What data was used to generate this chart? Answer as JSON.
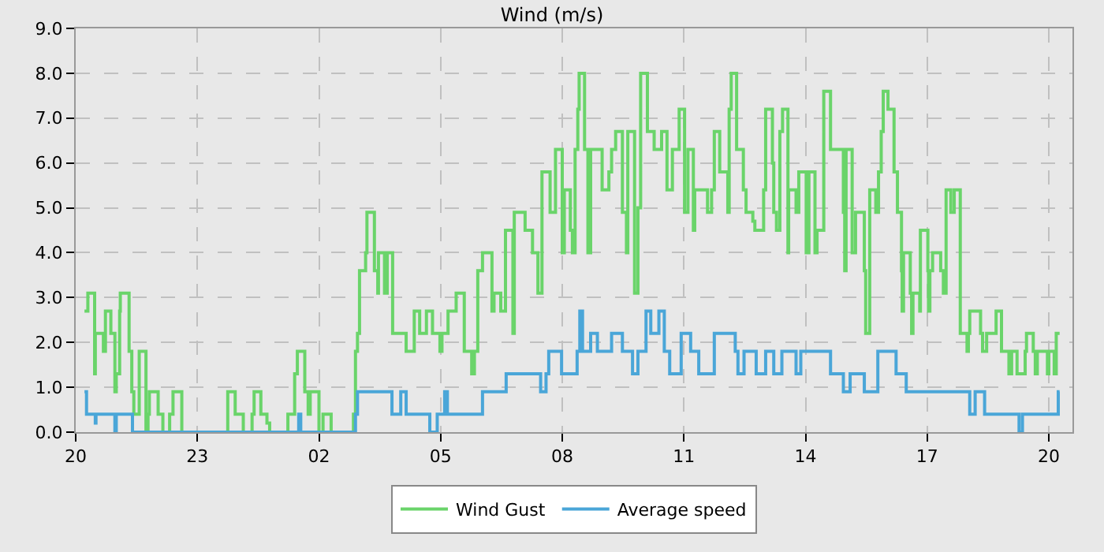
{
  "chart_data": {
    "type": "step",
    "title": "Wind (m/s)",
    "xlim": [
      "--01-01T20:00",
      "--01-02T20:35"
    ],
    "xticks": [
      {
        "value": "--01-01T20:00",
        "label": "20"
      },
      {
        "value": "--01-01T23:00",
        "label": "23"
      },
      {
        "value": "--01-02T02:00",
        "label": "02"
      },
      {
        "value": "--01-02T05:00",
        "label": "05"
      },
      {
        "value": "--01-02T08:00",
        "label": "08"
      },
      {
        "value": "--01-02T11:00",
        "label": "11"
      },
      {
        "value": "--01-02T14:00",
        "label": "14"
      },
      {
        "value": "--01-02T17:00",
        "label": "17"
      },
      {
        "value": "--01-02T20:00",
        "label": "20"
      }
    ],
    "ylim": [
      0,
      9
    ],
    "yticks": [
      {
        "value": 0,
        "label": "0.0"
      },
      {
        "value": 1,
        "label": "1.0"
      },
      {
        "value": 2,
        "label": "2.0"
      },
      {
        "value": 3,
        "label": "3.0"
      },
      {
        "value": 4,
        "label": "4.0"
      },
      {
        "value": 5,
        "label": "5.0"
      },
      {
        "value": 6,
        "label": "6.0"
      },
      {
        "value": 7,
        "label": "7.0"
      },
      {
        "value": 8,
        "label": "8.0"
      },
      {
        "value": 9,
        "label": "9.0"
      }
    ],
    "grid": true,
    "legend": "bottom",
    "marker": "none",
    "line_style": "solid",
    "series": [
      {
        "name": "Wind Gust",
        "color": "#6ad46a",
        "x": [
          "--01-01T20:13",
          "--01-01T20:18",
          "--01-01T20:28",
          "--01-01T20:29",
          "--01-01T20:41",
          "--01-01T20:44",
          "--01-01T20:52",
          "--01-01T20:58",
          "--01-01T21:00",
          "--01-01T21:05",
          "--01-01T21:06",
          "--01-01T21:19",
          "--01-01T21:23",
          "--01-01T21:26",
          "--01-01T21:34",
          "--01-01T21:44",
          "--01-01T21:47",
          "--01-01T21:49",
          "--01-01T22:02",
          "--01-01T22:09",
          "--01-01T22:19",
          "--01-01T22:24",
          "--01-01T22:37",
          "--01-01T23:45",
          "--01-01T23:56",
          "--01-02T00:08",
          "--01-02T00:21",
          "--01-02T00:24",
          "--01-02T00:34",
          "--01-02T00:43",
          "--01-02T00:47",
          "--01-02T01:14",
          "--01-02T01:24",
          "--01-02T01:28",
          "--01-02T01:39",
          "--01-02T01:44",
          "--01-02T01:47",
          "--01-02T02:00",
          "--01-02T02:06",
          "--01-02T02:18",
          "--01-02T02:51",
          "--01-02T02:54",
          "--01-02T02:57",
          "--01-02T03:00",
          "--01-02T03:09",
          "--01-02T03:11",
          "--01-02T03:22",
          "--01-02T03:27",
          "--01-02T03:28",
          "--01-02T03:37",
          "--01-02T03:41",
          "--01-02T03:49",
          "--01-02T03:54",
          "--01-02T04:09",
          "--01-02T04:21",
          "--01-02T04:29",
          "--01-02T04:39",
          "--01-02T04:48",
          "--01-02T04:59",
          "--01-02T05:02",
          "--01-02T05:11",
          "--01-02T05:23",
          "--01-02T05:35",
          "--01-02T05:46",
          "--01-02T05:50",
          "--01-02T05:55",
          "--01-02T06:02",
          "--01-02T06:16",
          "--01-02T06:19",
          "--01-02T06:29",
          "--01-02T06:36",
          "--01-02T06:47",
          "--01-02T06:49",
          "--01-02T07:05",
          "--01-02T07:16",
          "--01-02T07:24",
          "--01-02T07:30",
          "--01-02T07:32",
          "--01-02T07:42",
          "--01-02T07:50",
          "--01-02T08:00",
          "--01-02T08:01",
          "--01-02T08:03",
          "--01-02T08:12",
          "--01-02T08:15",
          "--01-02T08:19",
          "--01-02T08:23",
          "--01-02T08:25",
          "--01-02T08:33",
          "--01-02T08:38",
          "--01-02T08:42",
          "--01-02T08:59",
          "--01-02T09:09",
          "--01-02T09:13",
          "--01-02T09:19",
          "--01-02T09:29",
          "--01-02T09:35",
          "--01-02T09:37",
          "--01-02T09:47",
          "--01-02T09:52",
          "--01-02T09:56",
          "--01-02T10:06",
          "--01-02T10:16",
          "--01-02T10:27",
          "--01-02T10:35",
          "--01-02T10:43",
          "--01-02T10:53",
          "--01-02T11:01",
          "--01-02T11:06",
          "--01-02T11:14",
          "--01-02T11:16",
          "--01-02T11:35",
          "--01-02T11:41",
          "--01-02T11:45",
          "--01-02T11:53",
          "--01-02T12:05",
          "--01-02T12:07",
          "--01-02T12:10",
          "--01-02T12:18",
          "--01-02T12:28",
          "--01-02T12:32",
          "--01-02T12:42",
          "--01-02T12:45",
          "--01-02T12:58",
          "--01-02T13:01",
          "--01-02T13:11",
          "--01-02T13:13",
          "--01-02T13:17",
          "--01-02T13:22",
          "--01-02T13:26",
          "--01-02T13:34",
          "--01-02T13:35",
          "--01-02T13:46",
          "--01-02T13:50",
          "--01-02T14:01",
          "--01-02T14:05",
          "--01-02T14:14",
          "--01-02T14:17",
          "--01-02T14:27",
          "--01-02T14:37",
          "--01-02T14:56",
          "--01-02T14:58",
          "--01-02T15:00",
          "--01-02T15:09",
          "--01-02T15:14",
          "--01-02T15:27",
          "--01-02T15:29",
          "--01-02T15:35",
          "--01-02T15:44",
          "--01-02T15:48",
          "--01-02T15:52",
          "--01-02T15:55",
          "--01-02T16:02",
          "--01-02T16:11",
          "--01-02T16:14",
          "--01-02T16:16",
          "--01-02T16:22",
          "--01-02T16:23",
          "--01-02T16:25",
          "--01-02T16:35",
          "--01-02T16:37",
          "--01-02T16:39",
          "--01-02T16:49",
          "--01-02T16:50",
          "--01-02T17:01",
          "--01-02T17:02",
          "--01-02T17:04",
          "--01-02T17:08",
          "--01-02T17:20",
          "--01-02T17:24",
          "--01-02T17:28",
          "--01-02T17:35",
          "--01-02T17:40",
          "--01-02T17:49",
          "--01-02T17:59",
          "--01-02T18:01",
          "--01-02T18:03",
          "--01-02T18:19",
          "--01-02T18:22",
          "--01-02T18:28",
          "--01-02T18:42",
          "--01-02T18:50",
          "--01-02T19:01",
          "--01-02T19:05",
          "--01-02T19:13",
          "--01-02T19:25",
          "--01-02T19:27",
          "--01-02T19:37",
          "--01-02T19:40",
          "--01-02T19:43",
          "--01-02T19:58",
          "--01-02T20:00",
          "--01-02T20:08",
          "--01-02T20:11",
          "--01-02T20:16"
        ],
        "values": [
          2.7,
          3.1,
          1.3,
          2.2,
          1.8,
          2.7,
          2.2,
          0.9,
          1.3,
          2.7,
          3.1,
          1.8,
          0.9,
          0.4,
          1.8,
          0.0,
          0.4,
          0.9,
          0.4,
          0.0,
          0.4,
          0.9,
          0.0,
          0.9,
          0.4,
          0.0,
          0.4,
          0.9,
          0.4,
          0.2,
          0.0,
          0.4,
          1.3,
          1.8,
          0.9,
          0.4,
          0.9,
          0.0,
          0.4,
          0.0,
          0.4,
          1.8,
          2.2,
          3.6,
          4.0,
          4.9,
          3.6,
          3.1,
          4.0,
          3.1,
          4.0,
          2.2,
          2.2,
          1.8,
          2.7,
          2.2,
          2.7,
          2.2,
          1.8,
          2.2,
          2.7,
          3.1,
          1.8,
          1.3,
          1.8,
          3.6,
          4.0,
          2.7,
          3.1,
          2.7,
          4.5,
          2.2,
          4.9,
          4.5,
          4.0,
          3.1,
          5.8,
          5.8,
          4.9,
          6.3,
          4.0,
          4.0,
          5.4,
          4.5,
          4.0,
          6.3,
          7.2,
          8.0,
          6.3,
          4.0,
          6.3,
          5.4,
          5.8,
          6.3,
          6.7,
          4.9,
          4.0,
          6.7,
          3.1,
          5.0,
          8.0,
          6.7,
          6.3,
          6.7,
          5.4,
          6.3,
          7.2,
          4.9,
          6.3,
          4.5,
          5.4,
          4.9,
          5.4,
          6.7,
          5.8,
          4.9,
          7.2,
          8.0,
          6.3,
          5.4,
          4.9,
          4.7,
          4.5,
          5.4,
          7.2,
          6.0,
          4.9,
          4.5,
          6.7,
          7.2,
          4.0,
          5.4,
          4.9,
          5.8,
          4.0,
          5.8,
          4.0,
          4.5,
          7.6,
          6.3,
          4.9,
          3.6,
          6.3,
          4.0,
          4.9,
          3.6,
          2.2,
          5.4,
          4.9,
          5.8,
          6.7,
          7.6,
          7.2,
          5.8,
          5.8,
          4.9,
          3.6,
          2.7,
          4.0,
          3.1,
          2.2,
          3.1,
          2.7,
          4.5,
          3.6,
          2.7,
          3.6,
          4.0,
          3.6,
          3.1,
          5.4,
          4.9,
          5.4,
          2.2,
          1.8,
          2.2,
          2.7,
          2.2,
          1.8,
          2.2,
          2.7,
          1.8,
          1.3,
          1.8,
          1.3,
          1.8,
          2.2,
          1.8,
          1.3,
          1.8,
          1.3,
          1.8,
          1.3,
          2.2,
          2.2
        ]
      },
      {
        "name": "Average speed",
        "color": "#4aa6d8",
        "x": [
          "--01-01T20:13",
          "--01-01T20:16",
          "--01-01T20:29",
          "--01-01T20:30",
          "--01-01T20:58",
          "--01-01T21:00",
          "--01-01T21:06",
          "--01-01T21:24",
          "--01-02T01:30",
          "--01-02T01:33",
          "--01-02T02:54",
          "--01-02T02:57",
          "--01-02T03:18",
          "--01-02T03:48",
          "--01-02T03:50",
          "--01-02T04:01",
          "--01-02T04:09",
          "--01-02T04:44",
          "--01-02T04:55",
          "--01-02T05:06",
          "--01-02T05:10",
          "--01-02T06:02",
          "--01-02T06:37",
          "--01-02T06:57",
          "--01-02T07:28",
          "--01-02T07:36",
          "--01-02T07:40",
          "--01-02T07:59",
          "--01-02T08:22",
          "--01-02T08:26",
          "--01-02T08:30",
          "--01-02T08:42",
          "--01-02T08:52",
          "--01-02T09:13",
          "--01-02T09:29",
          "--01-02T09:44",
          "--01-02T09:52",
          "--01-02T10:04",
          "--01-02T10:11",
          "--01-02T10:23",
          "--01-02T10:31",
          "--01-02T10:39",
          "--01-02T10:56",
          "--01-02T11:10",
          "--01-02T11:22",
          "--01-02T11:45",
          "--01-02T12:16",
          "--01-02T12:20",
          "--01-02T12:29",
          "--01-02T12:47",
          "--01-02T13:01",
          "--01-02T13:13",
          "--01-02T13:25",
          "--01-02T13:46",
          "--01-02T13:53",
          "--01-02T14:37",
          "--01-02T14:56",
          "--01-02T15:06",
          "--01-02T15:27",
          "--01-02T15:47",
          "--01-02T16:14",
          "--01-02T16:29",
          "--01-02T18:03",
          "--01-02T18:11",
          "--01-02T18:25",
          "--01-02T19:16",
          "--01-02T19:21",
          "--01-02T20:14",
          "--01-02T20:16"
        ],
        "values": [
          0.9,
          0.4,
          0.2,
          0.4,
          0.0,
          0.4,
          0.4,
          0.0,
          0.4,
          0.0,
          0.4,
          0.9,
          0.9,
          0.4,
          0.4,
          0.9,
          0.4,
          0.0,
          0.4,
          0.9,
          0.4,
          0.9,
          1.3,
          1.3,
          0.9,
          1.3,
          1.8,
          1.3,
          1.8,
          2.7,
          1.8,
          2.2,
          1.8,
          2.2,
          1.8,
          1.3,
          1.8,
          2.7,
          2.2,
          2.7,
          1.8,
          1.3,
          2.2,
          1.8,
          1.3,
          2.2,
          1.8,
          1.3,
          1.8,
          1.3,
          1.8,
          1.3,
          1.8,
          1.3,
          1.8,
          1.3,
          0.9,
          1.3,
          0.9,
          1.8,
          1.3,
          0.9,
          0.4,
          0.9,
          0.4,
          0.0,
          0.4,
          0.9,
          0.9
        ]
      }
    ]
  }
}
